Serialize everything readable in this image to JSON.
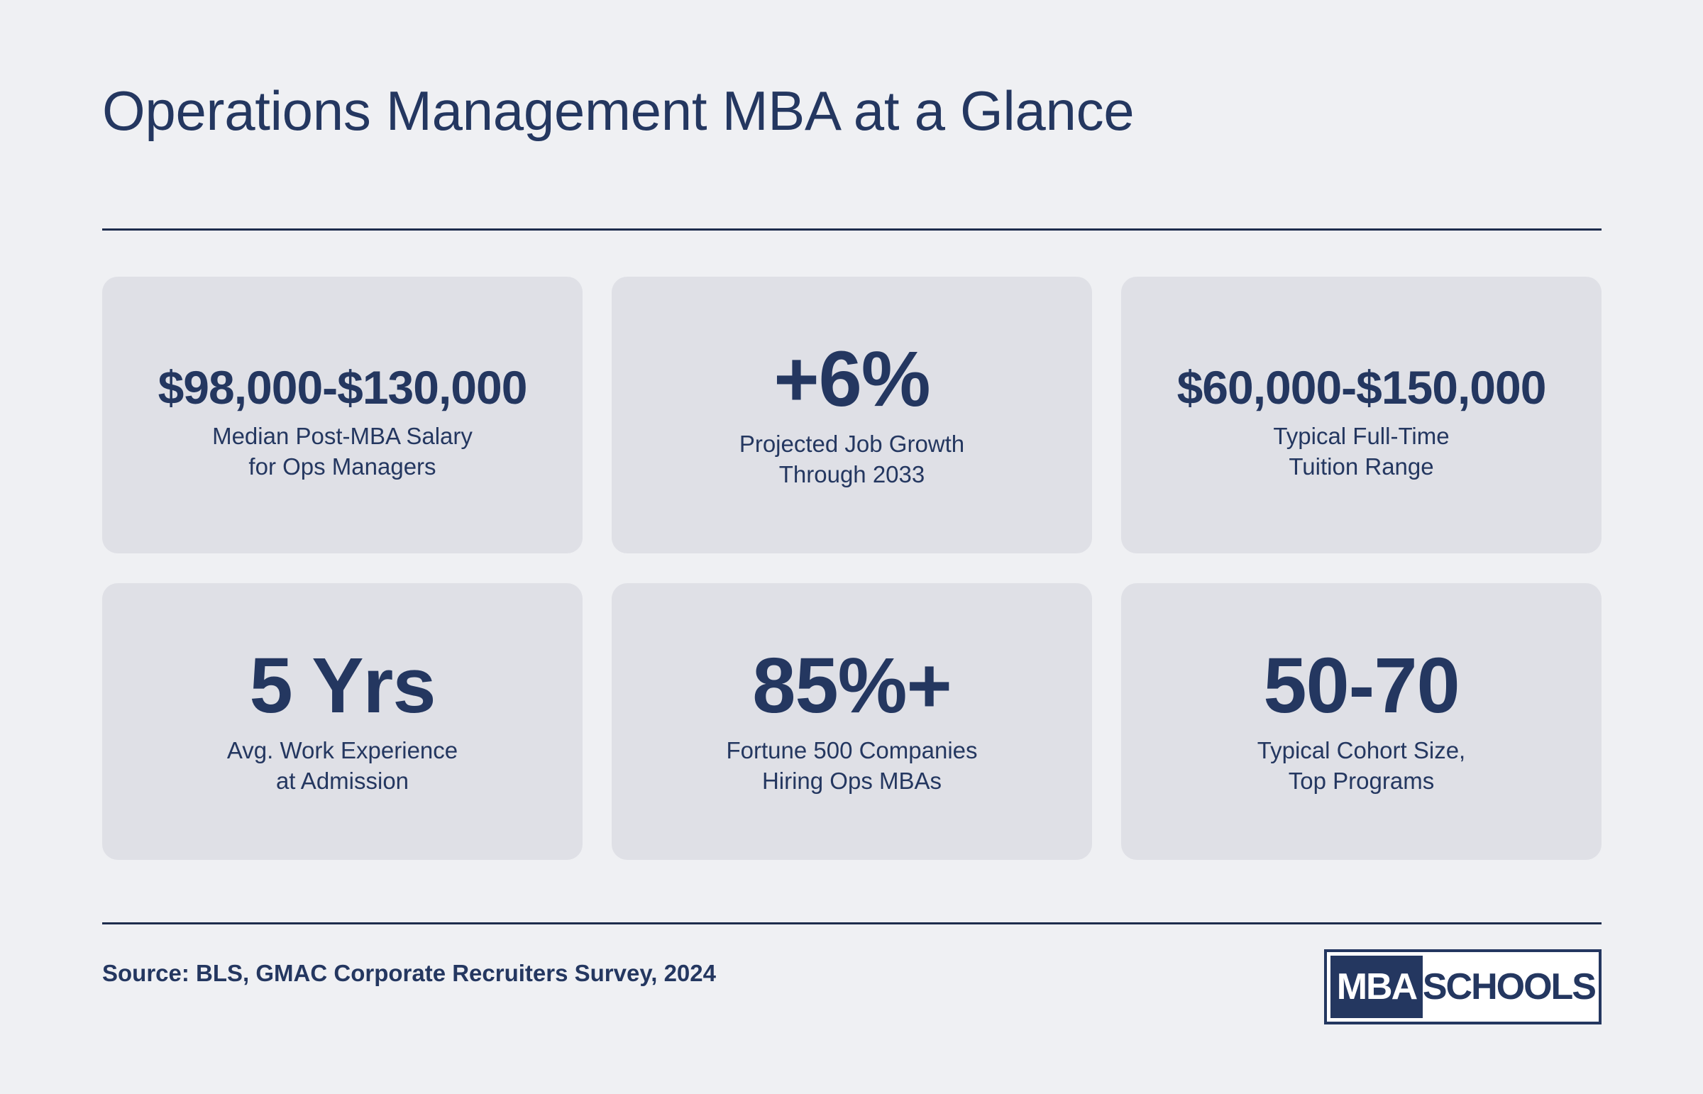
{
  "title": "Operations Management MBA at a Glance",
  "stats": [
    {
      "value": "$98,000-$130,000",
      "label_line1": "Median Post-MBA Salary",
      "label_line2": "for Ops Managers"
    },
    {
      "value": "+6%",
      "label_line1": "Projected Job Growth",
      "label_line2": "Through 2033"
    },
    {
      "value": "$60,000-$150,000",
      "label_line1": "Typical Full-Time",
      "label_line2": "Tuition Range"
    },
    {
      "value": "5 Yrs",
      "label_line1": "Avg. Work Experience",
      "label_line2": "at Admission"
    },
    {
      "value": "85%+",
      "label_line1": "Fortune 500 Companies",
      "label_line2": "Hiring Ops MBAs"
    },
    {
      "value": "50-70",
      "label_line1": "Typical Cohort Size,",
      "label_line2": "Top Programs"
    }
  ],
  "source": "Source: BLS, GMAC Corporate Recruiters Survey, 2024",
  "logo": {
    "left": "MBA",
    "right": "SCHOOLS"
  },
  "colors": {
    "background": "#eff0f3",
    "card": "#dfe0e6",
    "text": "#243760",
    "rule": "#1e2d4d"
  }
}
